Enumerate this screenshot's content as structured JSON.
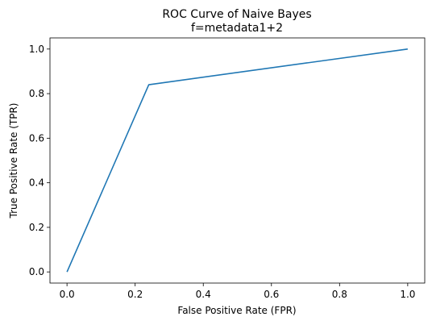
{
  "chart_data": {
    "type": "line",
    "title": "ROC Curve of Naive Bayes",
    "subtitle": "f=metadata1+2",
    "xlabel": "False Positive Rate (FPR)",
    "ylabel": "True Positive Rate (TPR)",
    "xlim": [
      -0.05,
      1.05
    ],
    "ylim": [
      -0.05,
      1.05
    ],
    "xticks": [
      0.0,
      0.2,
      0.4,
      0.6,
      0.8,
      1.0
    ],
    "yticks": [
      0.0,
      0.2,
      0.4,
      0.6,
      0.8,
      1.0
    ],
    "xtick_labels": [
      "0.0",
      "0.2",
      "0.4",
      "0.6",
      "0.8",
      "1.0"
    ],
    "ytick_labels": [
      "0.0",
      "0.2",
      "0.4",
      "0.6",
      "0.8",
      "1.0"
    ],
    "grid": false,
    "series": [
      {
        "x": [
          0.0,
          0.24,
          1.0
        ],
        "y": [
          0.0,
          0.84,
          1.0
        ],
        "color": "#1f77b4"
      }
    ]
  }
}
